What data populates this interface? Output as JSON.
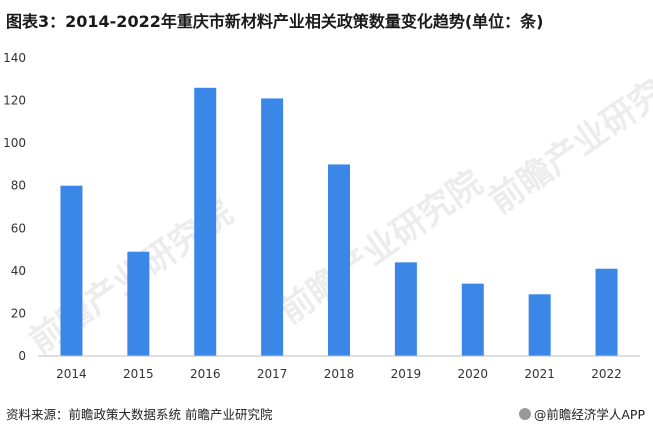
{
  "title": "图表3：2014-2022年重庆市新材料产业相关政策数量变化趋势(单位：条)",
  "footer": {
    "source": "资料来源：前瞻政策大数据系统 前瞻产业研究院",
    "brand": "@前瞻经济学人APP"
  },
  "watermark": "前瞻产业研究院",
  "colors": {
    "bar": "#3a87e8",
    "axis": "#bfbfbf",
    "text": "#333333"
  },
  "chart_data": {
    "type": "bar",
    "categories": [
      "2014",
      "2015",
      "2016",
      "2017",
      "2018",
      "2019",
      "2020",
      "2021",
      "2022"
    ],
    "values": [
      80,
      49,
      126,
      121,
      90,
      44,
      34,
      29,
      41
    ],
    "ylim": [
      0,
      140
    ],
    "yticks": [
      0,
      20,
      40,
      60,
      80,
      100,
      120,
      140
    ],
    "grid": false,
    "title": "",
    "xlabel": "",
    "ylabel": ""
  }
}
